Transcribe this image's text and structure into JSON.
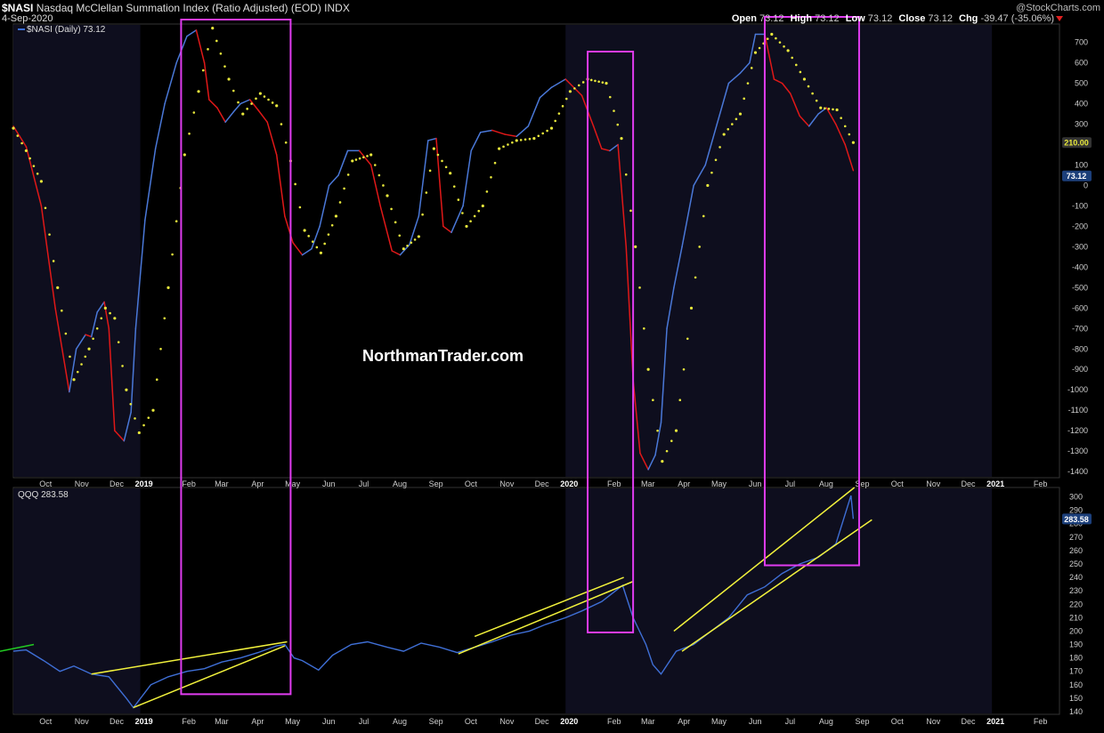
{
  "header": {
    "symbol": "$NASI",
    "description": "Nasdaq McClellan Summation Index (Ratio Adjusted) (EOD)",
    "exchange": "INDX",
    "date": "4-Sep-2020",
    "brand": "@StockCharts.com",
    "ohlc": {
      "open_label": "Open",
      "open": "73.12",
      "high_label": "High",
      "high": "73.12",
      "low_label": "Low",
      "low": "73.12",
      "close_label": "Close",
      "close": "73.12",
      "chg_label": "Chg",
      "chg": "-39.47 (-35.06%)"
    }
  },
  "watermark": "NorthmanTrader.com",
  "legend_top": "$NASI (Daily) 73.12",
  "legend_bottom": "QQQ 283.58",
  "colors": {
    "background": "#000000",
    "shade": "#0e0e1e",
    "nasi_up": "#4a78d8",
    "nasi_down": "#e01818",
    "signal_dots": "#e8e83c",
    "qqq_price": "#3f6fd6",
    "trendline": "#f2f23c",
    "highlight_box": "#e03cf0",
    "axis_text": "#cfcfcf",
    "green_line": "#22cc22"
  },
  "chart_data": [
    {
      "type": "line",
      "title": "$NASI Nasdaq McClellan Summation Index (Ratio Adjusted)",
      "x_axis_labels": [
        "Oct",
        "Nov",
        "Dec",
        "2019",
        "Feb",
        "Mar",
        "Apr",
        "May",
        "Jun",
        "Jul",
        "Aug",
        "Sep",
        "Oct",
        "Nov",
        "Dec",
        "2020",
        "Feb",
        "Mar",
        "Apr",
        "May",
        "Jun",
        "Jul",
        "Aug",
        "Sep",
        "Oct",
        "Nov",
        "Dec",
        "2021",
        "Feb"
      ],
      "yticks": [
        700,
        600,
        500,
        400,
        300,
        200,
        100,
        0,
        -100,
        -200,
        -300,
        -400,
        -500,
        -600,
        -700,
        -800,
        -900,
        -1000,
        -1100,
        -1200,
        -1300,
        -1400
      ],
      "ylim": [
        -1430,
        790
      ],
      "series": [
        {
          "name": "$NASI (Daily)",
          "x": [
            "2018-09-14",
            "2018-09-25",
            "2018-10-08",
            "2018-10-20",
            "2018-11-01",
            "2018-11-07",
            "2018-11-15",
            "2018-11-20",
            "2018-11-25",
            "2018-12-01",
            "2018-12-05",
            "2018-12-10",
            "2018-12-18",
            "2018-12-24",
            "2018-12-28",
            "2019-01-05",
            "2019-01-14",
            "2019-01-22",
            "2019-02-01",
            "2019-02-10",
            "2019-02-18",
            "2019-02-25",
            "2019-03-01",
            "2019-03-08",
            "2019-03-15",
            "2019-03-22",
            "2019-03-28",
            "2019-04-05",
            "2019-04-12",
            "2019-04-20",
            "2019-04-28",
            "2019-05-05",
            "2019-05-12",
            "2019-05-20",
            "2019-05-28",
            "2019-06-04",
            "2019-06-12",
            "2019-06-20",
            "2019-06-28",
            "2019-07-08",
            "2019-07-18",
            "2019-07-26",
            "2019-08-05",
            "2019-08-12",
            "2019-08-20",
            "2019-08-28",
            "2019-09-05",
            "2019-09-12",
            "2019-09-18",
            "2019-09-25",
            "2019-10-05",
            "2019-10-12",
            "2019-10-20",
            "2019-10-30",
            "2019-11-10",
            "2019-11-20",
            "2019-11-30",
            "2019-12-10",
            "2019-12-20",
            "2020-01-01",
            "2020-01-15",
            "2020-01-25",
            "2020-02-01",
            "2020-02-08",
            "2020-02-15",
            "2020-02-22",
            "2020-02-28",
            "2020-03-05",
            "2020-03-12",
            "2020-03-18",
            "2020-03-23",
            "2020-03-28",
            "2020-04-03",
            "2020-04-10",
            "2020-04-20",
            "2020-04-30",
            "2020-05-10",
            "2020-05-20",
            "2020-05-30",
            "2020-06-07",
            "2020-06-12",
            "2020-06-20",
            "2020-06-28",
            "2020-07-05",
            "2020-07-12",
            "2020-07-20",
            "2020-07-28",
            "2020-08-05",
            "2020-08-12",
            "2020-08-20",
            "2020-08-28",
            "2020-09-04"
          ],
          "values": [
            290,
            190,
            -100,
            -600,
            -1010,
            -800,
            -730,
            -740,
            -620,
            -570,
            -700,
            -1200,
            -1250,
            -1110,
            -700,
            -170,
            180,
            400,
            600,
            730,
            760,
            600,
            420,
            380,
            310,
            360,
            400,
            420,
            370,
            310,
            150,
            -150,
            -280,
            -340,
            -310,
            -200,
            0,
            50,
            170,
            170,
            100,
            -100,
            -320,
            -340,
            -290,
            -150,
            220,
            230,
            -200,
            -230,
            -100,
            170,
            260,
            270,
            250,
            240,
            290,
            430,
            480,
            520,
            440,
            290,
            180,
            170,
            200,
            -300,
            -950,
            -1310,
            -1390,
            -1320,
            -1160,
            -700,
            -500,
            -300,
            0,
            100,
            300,
            500,
            550,
            600,
            740,
            740,
            520,
            500,
            450,
            340,
            290,
            350,
            380,
            300,
            200,
            73.12
          ]
        },
        {
          "name": "Signal (moving average dots)",
          "x": [
            "2018-09-14",
            "2018-09-25",
            "2018-10-08",
            "2018-10-22",
            "2018-11-05",
            "2018-11-18",
            "2018-12-02",
            "2018-12-10",
            "2018-12-20",
            "2018-12-31",
            "2019-01-12",
            "2019-01-25",
            "2019-02-08",
            "2019-02-20",
            "2019-03-04",
            "2019-03-18",
            "2019-03-30",
            "2019-04-14",
            "2019-04-28",
            "2019-05-10",
            "2019-05-22",
            "2019-06-05",
            "2019-06-18",
            "2019-07-02",
            "2019-07-18",
            "2019-08-01",
            "2019-08-15",
            "2019-08-28",
            "2019-09-10",
            "2019-09-24",
            "2019-10-08",
            "2019-10-22",
            "2019-11-05",
            "2019-11-20",
            "2019-12-05",
            "2019-12-20",
            "2020-01-05",
            "2020-01-20",
            "2020-02-05",
            "2020-02-18",
            "2020-03-01",
            "2020-03-12",
            "2020-03-24",
            "2020-04-05",
            "2020-04-18",
            "2020-05-02",
            "2020-05-16",
            "2020-05-30",
            "2020-06-12",
            "2020-06-26",
            "2020-07-10",
            "2020-07-24",
            "2020-08-07",
            "2020-08-21",
            "2020-09-04"
          ],
          "values": [
            280,
            170,
            20,
            -500,
            -950,
            -800,
            -600,
            -650,
            -1000,
            -1210,
            -1100,
            -500,
            150,
            460,
            770,
            520,
            350,
            450,
            390,
            120,
            -220,
            -330,
            -150,
            120,
            150,
            -50,
            -310,
            -250,
            180,
            60,
            -200,
            -100,
            180,
            220,
            230,
            280,
            460,
            520,
            500,
            230,
            -300,
            -900,
            -1350,
            -1200,
            -600,
            0,
            250,
            350,
            650,
            740,
            660,
            520,
            380,
            370,
            210
          ]
        }
      ]
    },
    {
      "type": "line",
      "title": "QQQ",
      "x_axis_labels": [
        "Oct",
        "Nov",
        "Dec",
        "2019",
        "Feb",
        "Mar",
        "Apr",
        "May",
        "Jun",
        "Jul",
        "Aug",
        "Sep",
        "Oct",
        "Nov",
        "Dec",
        "2020",
        "Feb",
        "Mar",
        "Apr",
        "May",
        "Jun",
        "Jul",
        "Aug",
        "Sep",
        "Oct",
        "Nov",
        "Dec",
        "2021",
        "Feb"
      ],
      "yticks": [
        300,
        290,
        280,
        270,
        260,
        250,
        240,
        230,
        220,
        210,
        200,
        190,
        180,
        170,
        160,
        150,
        140
      ],
      "ylim": [
        138,
        307
      ],
      "series": [
        {
          "name": "QQQ",
          "x": [
            "2018-09-14",
            "2018-09-25",
            "2018-10-10",
            "2018-10-24",
            "2018-11-05",
            "2018-11-20",
            "2018-12-05",
            "2018-12-20",
            "2018-12-26",
            "2019-01-10",
            "2019-01-25",
            "2019-02-10",
            "2019-02-25",
            "2019-03-12",
            "2019-03-28",
            "2019-04-12",
            "2019-04-28",
            "2019-05-05",
            "2019-05-13",
            "2019-05-20",
            "2019-06-03",
            "2019-06-15",
            "2019-07-01",
            "2019-07-15",
            "2019-08-01",
            "2019-08-15",
            "2019-08-30",
            "2019-09-15",
            "2019-09-30",
            "2019-10-15",
            "2019-10-30",
            "2019-11-15",
            "2019-12-01",
            "2019-12-15",
            "2020-01-01",
            "2020-01-15",
            "2020-02-01",
            "2020-02-19",
            "2020-02-28",
            "2020-03-10",
            "2020-03-16",
            "2020-03-23",
            "2020-04-05",
            "2020-04-20",
            "2020-05-05",
            "2020-05-20",
            "2020-06-05",
            "2020-06-20",
            "2020-07-05",
            "2020-07-20",
            "2020-08-05",
            "2020-08-20",
            "2020-09-02",
            "2020-09-04"
          ],
          "values": [
            185,
            186,
            178,
            170,
            174,
            168,
            166,
            150,
            143,
            160,
            166,
            170,
            172,
            177,
            180,
            184,
            189,
            190,
            180,
            178,
            171,
            182,
            190,
            192,
            188,
            185,
            191,
            188,
            184,
            188,
            192,
            197,
            200,
            205,
            210,
            215,
            222,
            234,
            210,
            190,
            175,
            168,
            185,
            190,
            200,
            210,
            227,
            233,
            243,
            250,
            255,
            265,
            301,
            283.58
          ]
        }
      ]
    }
  ]
}
